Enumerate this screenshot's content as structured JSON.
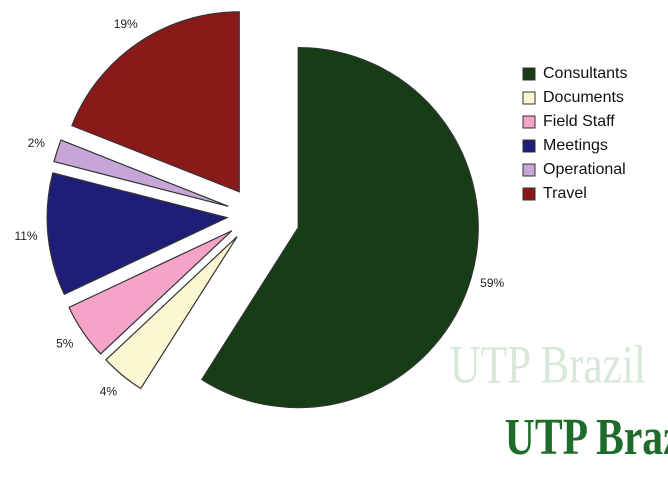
{
  "chart_data": {
    "type": "pie",
    "categories": [
      "Consultants",
      "Documents",
      "Field Staff",
      "Meetings",
      "Operational",
      "Travel"
    ],
    "values": [
      59,
      4,
      5,
      11,
      2,
      19
    ],
    "value_labels": [
      "59%",
      "4%",
      "5%",
      "11%",
      "2%",
      "19%"
    ],
    "colors": [
      "#173d17",
      "#fcf7d2",
      "#f4a3c9",
      "#1e1e78",
      "#c5a6d6",
      "#8a1a1a"
    ],
    "legend": "right",
    "watermark": "UTP Brazil"
  }
}
